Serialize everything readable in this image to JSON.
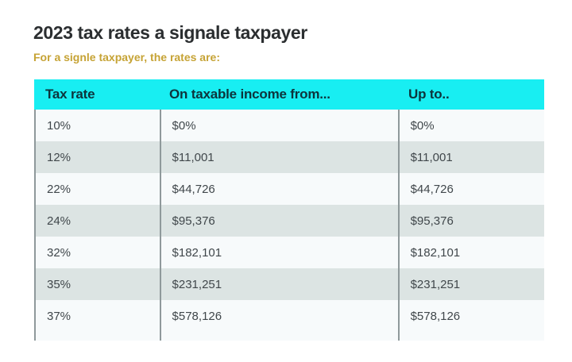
{
  "page": {
    "title": "2023 tax rates a signale taxpayer",
    "subtitle": "For a signle taxpayer, the rates are:"
  },
  "colors": {
    "title": "#2b2e30",
    "subtitle": "#c6a335",
    "header_bg": "#18eef2",
    "header_text": "#0d343c",
    "row_light": "#f7fafb",
    "row_dark": "#dce4e3",
    "divider": "#8f999b",
    "cell_text": "#40474b"
  },
  "chart_data": {
    "type": "table",
    "title": "2023 tax rates a signale taxpayer",
    "subtitle": "For a signle taxpayer, the rates are:",
    "columns": [
      "Tax rate",
      "On taxable income from...",
      "Up to.."
    ],
    "rows": [
      [
        "10%",
        "$0%",
        "$0%"
      ],
      [
        "12%",
        "$11,001",
        "$11,001"
      ],
      [
        "22%",
        "$44,726",
        "$44,726"
      ],
      [
        "24%",
        "$95,376",
        "$95,376"
      ],
      [
        "32%",
        "$182,101",
        "$182,101"
      ],
      [
        "35%",
        "$231,251",
        "$231,251"
      ],
      [
        "37%",
        "$578,126",
        "$578,126"
      ]
    ],
    "layout": {
      "striped": true,
      "header_fill": "cyan",
      "last_row_cut_off": true
    }
  }
}
